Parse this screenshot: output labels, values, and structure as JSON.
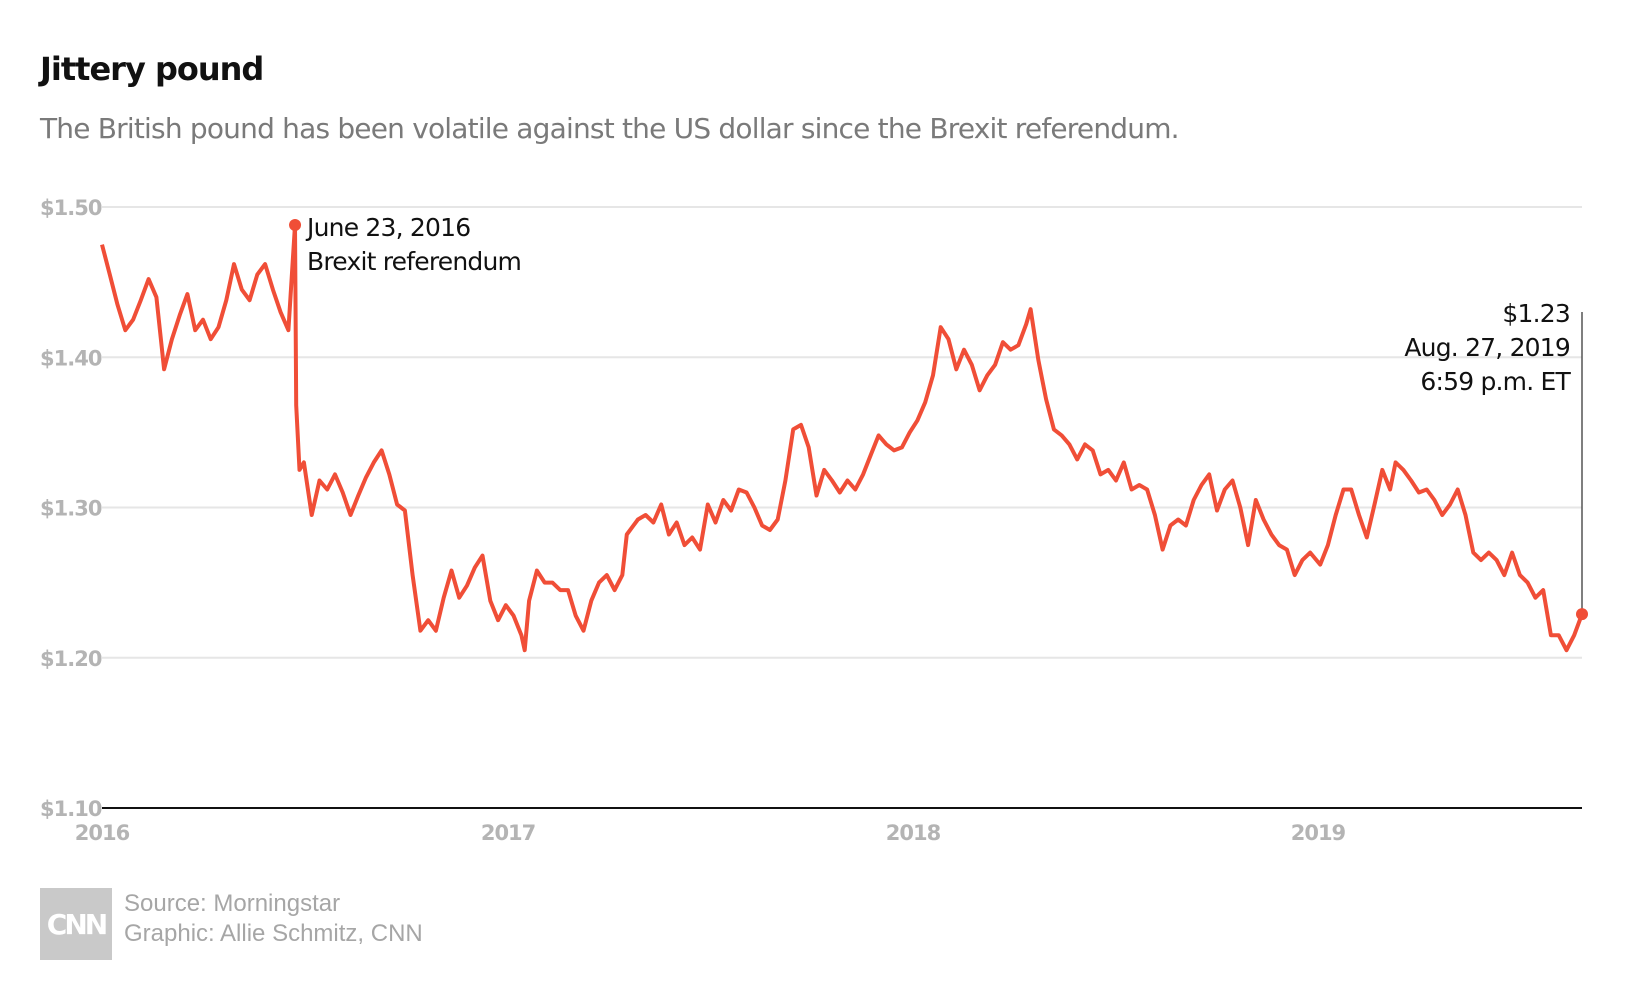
{
  "header": {
    "title": "Jittery pound",
    "subtitle": "The British pound has been volatile against the US dollar since the Brexit referendum."
  },
  "footer": {
    "logo_text": "CNN",
    "source": "Source: Morningstar",
    "graphic": "Graphic: Allie Schmitz, CNN"
  },
  "colors": {
    "line": "#f04e37",
    "grid": "#e6e6e6",
    "axis": "#111111",
    "tick_text": "#b4b4b4"
  },
  "chart_data": {
    "type": "line",
    "title": "Jittery pound",
    "subtitle": "The British pound has been volatile against the US dollar since the Brexit referendum.",
    "xlabel": "",
    "ylabel": "",
    "x_range": [
      "2016-01-01",
      "2019-08-27"
    ],
    "ylim": [
      1.1,
      1.5
    ],
    "y_ticks": [
      {
        "value": 1.5,
        "label": "$1.50"
      },
      {
        "value": 1.4,
        "label": "$1.40"
      },
      {
        "value": 1.3,
        "label": "$1.30"
      },
      {
        "value": 1.2,
        "label": "$1.20"
      },
      {
        "value": 1.1,
        "label": "$1.10"
      }
    ],
    "x_ticks": [
      {
        "value": "2016-01-01",
        "label": "2016"
      },
      {
        "value": "2017-01-01",
        "label": "2017"
      },
      {
        "value": "2018-01-01",
        "label": "2018"
      },
      {
        "value": "2019-01-01",
        "label": "2019"
      }
    ],
    "grid": true,
    "legend": "none",
    "series": [
      {
        "points": [
          [
            "2016-01-01",
            1.475
          ],
          [
            "2016-01-08",
            1.455
          ],
          [
            "2016-01-15",
            1.435
          ],
          [
            "2016-01-22",
            1.418
          ],
          [
            "2016-01-29",
            1.425
          ],
          [
            "2016-02-05",
            1.438
          ],
          [
            "2016-02-12",
            1.452
          ],
          [
            "2016-02-19",
            1.44
          ],
          [
            "2016-02-26",
            1.392
          ],
          [
            "2016-03-04",
            1.412
          ],
          [
            "2016-03-11",
            1.428
          ],
          [
            "2016-03-18",
            1.442
          ],
          [
            "2016-03-25",
            1.418
          ],
          [
            "2016-04-01",
            1.425
          ],
          [
            "2016-04-08",
            1.412
          ],
          [
            "2016-04-15",
            1.42
          ],
          [
            "2016-04-22",
            1.438
          ],
          [
            "2016-04-29",
            1.462
          ],
          [
            "2016-05-06",
            1.445
          ],
          [
            "2016-05-13",
            1.438
          ],
          [
            "2016-05-20",
            1.455
          ],
          [
            "2016-05-27",
            1.462
          ],
          [
            "2016-06-03",
            1.445
          ],
          [
            "2016-06-10",
            1.43
          ],
          [
            "2016-06-17",
            1.418
          ],
          [
            "2016-06-23",
            1.488
          ],
          [
            "2016-06-24",
            1.368
          ],
          [
            "2016-06-27",
            1.325
          ],
          [
            "2016-07-01",
            1.33
          ],
          [
            "2016-07-08",
            1.295
          ],
          [
            "2016-07-15",
            1.318
          ],
          [
            "2016-07-22",
            1.312
          ],
          [
            "2016-07-29",
            1.322
          ],
          [
            "2016-08-05",
            1.31
          ],
          [
            "2016-08-12",
            1.295
          ],
          [
            "2016-08-19",
            1.308
          ],
          [
            "2016-08-26",
            1.32
          ],
          [
            "2016-09-02",
            1.33
          ],
          [
            "2016-09-09",
            1.338
          ],
          [
            "2016-09-16",
            1.322
          ],
          [
            "2016-09-23",
            1.302
          ],
          [
            "2016-09-30",
            1.298
          ],
          [
            "2016-10-07",
            1.255
          ],
          [
            "2016-10-14",
            1.218
          ],
          [
            "2016-10-21",
            1.225
          ],
          [
            "2016-10-28",
            1.218
          ],
          [
            "2016-11-04",
            1.24
          ],
          [
            "2016-11-11",
            1.258
          ],
          [
            "2016-11-18",
            1.24
          ],
          [
            "2016-11-25",
            1.248
          ],
          [
            "2016-12-02",
            1.26
          ],
          [
            "2016-12-09",
            1.268
          ],
          [
            "2016-12-16",
            1.238
          ],
          [
            "2016-12-23",
            1.225
          ],
          [
            "2016-12-30",
            1.235
          ],
          [
            "2017-01-06",
            1.228
          ],
          [
            "2017-01-13",
            1.215
          ],
          [
            "2017-01-16",
            1.205
          ],
          [
            "2017-01-20",
            1.238
          ],
          [
            "2017-01-27",
            1.258
          ],
          [
            "2017-02-03",
            1.25
          ],
          [
            "2017-02-10",
            1.25
          ],
          [
            "2017-02-17",
            1.245
          ],
          [
            "2017-02-24",
            1.245
          ],
          [
            "2017-03-03",
            1.228
          ],
          [
            "2017-03-10",
            1.218
          ],
          [
            "2017-03-17",
            1.238
          ],
          [
            "2017-03-24",
            1.25
          ],
          [
            "2017-03-31",
            1.255
          ],
          [
            "2017-04-07",
            1.245
          ],
          [
            "2017-04-14",
            1.255
          ],
          [
            "2017-04-18",
            1.282
          ],
          [
            "2017-04-28",
            1.292
          ],
          [
            "2017-05-05",
            1.295
          ],
          [
            "2017-05-12",
            1.29
          ],
          [
            "2017-05-19",
            1.302
          ],
          [
            "2017-05-26",
            1.282
          ],
          [
            "2017-06-02",
            1.29
          ],
          [
            "2017-06-09",
            1.275
          ],
          [
            "2017-06-16",
            1.28
          ],
          [
            "2017-06-23",
            1.272
          ],
          [
            "2017-06-30",
            1.302
          ],
          [
            "2017-07-07",
            1.29
          ],
          [
            "2017-07-14",
            1.305
          ],
          [
            "2017-07-21",
            1.298
          ],
          [
            "2017-07-28",
            1.312
          ],
          [
            "2017-08-04",
            1.31
          ],
          [
            "2017-08-11",
            1.3
          ],
          [
            "2017-08-18",
            1.288
          ],
          [
            "2017-08-25",
            1.285
          ],
          [
            "2017-09-01",
            1.292
          ],
          [
            "2017-09-08",
            1.318
          ],
          [
            "2017-09-15",
            1.352
          ],
          [
            "2017-09-22",
            1.355
          ],
          [
            "2017-09-29",
            1.34
          ],
          [
            "2017-10-06",
            1.308
          ],
          [
            "2017-10-13",
            1.325
          ],
          [
            "2017-10-20",
            1.318
          ],
          [
            "2017-10-27",
            1.31
          ],
          [
            "2017-11-03",
            1.318
          ],
          [
            "2017-11-10",
            1.312
          ],
          [
            "2017-11-17",
            1.322
          ],
          [
            "2017-11-24",
            1.335
          ],
          [
            "2017-12-01",
            1.348
          ],
          [
            "2017-12-08",
            1.342
          ],
          [
            "2017-12-15",
            1.338
          ],
          [
            "2017-12-22",
            1.34
          ],
          [
            "2017-12-29",
            1.35
          ],
          [
            "2018-01-05",
            1.358
          ],
          [
            "2018-01-12",
            1.37
          ],
          [
            "2018-01-19",
            1.388
          ],
          [
            "2018-01-26",
            1.42
          ],
          [
            "2018-02-02",
            1.412
          ],
          [
            "2018-02-09",
            1.392
          ],
          [
            "2018-02-16",
            1.405
          ],
          [
            "2018-02-23",
            1.395
          ],
          [
            "2018-03-02",
            1.378
          ],
          [
            "2018-03-09",
            1.388
          ],
          [
            "2018-03-16",
            1.395
          ],
          [
            "2018-03-23",
            1.41
          ],
          [
            "2018-03-30",
            1.405
          ],
          [
            "2018-04-06",
            1.408
          ],
          [
            "2018-04-13",
            1.422
          ],
          [
            "2018-04-17",
            1.432
          ],
          [
            "2018-04-24",
            1.398
          ],
          [
            "2018-05-01",
            1.372
          ],
          [
            "2018-05-08",
            1.352
          ],
          [
            "2018-05-15",
            1.348
          ],
          [
            "2018-05-22",
            1.342
          ],
          [
            "2018-05-29",
            1.332
          ],
          [
            "2018-06-05",
            1.342
          ],
          [
            "2018-06-12",
            1.338
          ],
          [
            "2018-06-19",
            1.322
          ],
          [
            "2018-06-26",
            1.325
          ],
          [
            "2018-07-03",
            1.318
          ],
          [
            "2018-07-10",
            1.33
          ],
          [
            "2018-07-17",
            1.312
          ],
          [
            "2018-07-24",
            1.315
          ],
          [
            "2018-07-31",
            1.312
          ],
          [
            "2018-08-07",
            1.295
          ],
          [
            "2018-08-14",
            1.272
          ],
          [
            "2018-08-21",
            1.288
          ],
          [
            "2018-08-28",
            1.292
          ],
          [
            "2018-09-04",
            1.288
          ],
          [
            "2018-09-11",
            1.305
          ],
          [
            "2018-09-18",
            1.315
          ],
          [
            "2018-09-25",
            1.322
          ],
          [
            "2018-10-02",
            1.298
          ],
          [
            "2018-10-09",
            1.312
          ],
          [
            "2018-10-16",
            1.318
          ],
          [
            "2018-10-23",
            1.3
          ],
          [
            "2018-10-30",
            1.275
          ],
          [
            "2018-11-06",
            1.305
          ],
          [
            "2018-11-13",
            1.292
          ],
          [
            "2018-11-20",
            1.282
          ],
          [
            "2018-11-27",
            1.275
          ],
          [
            "2018-12-04",
            1.272
          ],
          [
            "2018-12-11",
            1.255
          ],
          [
            "2018-12-18",
            1.265
          ],
          [
            "2018-12-25",
            1.27
          ],
          [
            "2019-01-03",
            1.262
          ],
          [
            "2019-01-10",
            1.275
          ],
          [
            "2019-01-17",
            1.295
          ],
          [
            "2019-01-24",
            1.312
          ],
          [
            "2019-01-31",
            1.312
          ],
          [
            "2019-02-07",
            1.295
          ],
          [
            "2019-02-14",
            1.28
          ],
          [
            "2019-02-21",
            1.302
          ],
          [
            "2019-02-28",
            1.325
          ],
          [
            "2019-03-07",
            1.312
          ],
          [
            "2019-03-12",
            1.33
          ],
          [
            "2019-03-19",
            1.325
          ],
          [
            "2019-03-26",
            1.318
          ],
          [
            "2019-04-02",
            1.31
          ],
          [
            "2019-04-09",
            1.312
          ],
          [
            "2019-04-16",
            1.305
          ],
          [
            "2019-04-23",
            1.295
          ],
          [
            "2019-04-30",
            1.302
          ],
          [
            "2019-05-07",
            1.312
          ],
          [
            "2019-05-14",
            1.295
          ],
          [
            "2019-05-21",
            1.27
          ],
          [
            "2019-05-28",
            1.265
          ],
          [
            "2019-06-04",
            1.27
          ],
          [
            "2019-06-11",
            1.265
          ],
          [
            "2019-06-18",
            1.255
          ],
          [
            "2019-06-25",
            1.27
          ],
          [
            "2019-07-02",
            1.255
          ],
          [
            "2019-07-09",
            1.25
          ],
          [
            "2019-07-16",
            1.24
          ],
          [
            "2019-07-23",
            1.245
          ],
          [
            "2019-07-30",
            1.215
          ],
          [
            "2019-08-06",
            1.215
          ],
          [
            "2019-08-13",
            1.205
          ],
          [
            "2019-08-20",
            1.215
          ],
          [
            "2019-08-27",
            1.229
          ]
        ]
      }
    ],
    "annotations": [
      {
        "x": "2016-06-23",
        "y": 1.488,
        "lines": [
          "June 23, 2016",
          "Brexit referendum"
        ]
      },
      {
        "x": "2019-08-27",
        "y": 1.229,
        "lines": [
          "$1.23",
          "Aug. 27, 2019",
          "6:59 p.m. ET"
        ]
      }
    ]
  }
}
